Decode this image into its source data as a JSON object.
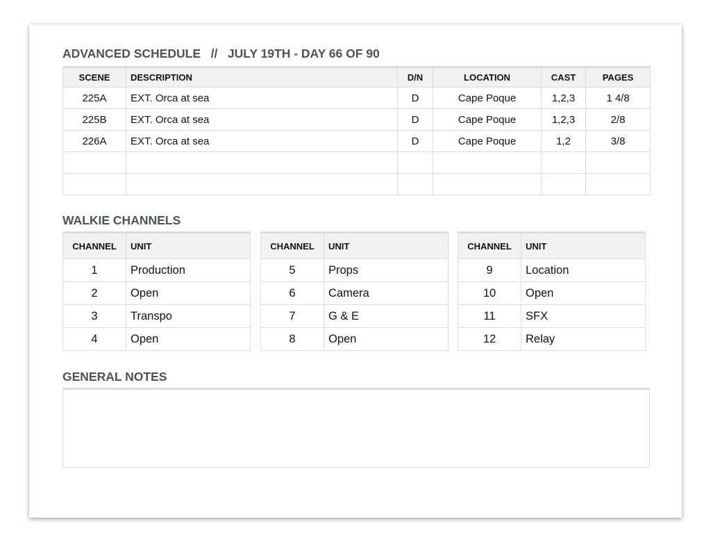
{
  "schedule": {
    "title": "ADVANCED SCHEDULE   //   JULY 19TH - DAY 66 OF 90",
    "headers": [
      "SCENE",
      "DESCRIPTION",
      "D/N",
      "LOCATION",
      "CAST",
      "PAGES"
    ],
    "rows": [
      [
        "225A",
        "EXT. Orca at sea",
        "D",
        "Cape Poque",
        "1,2,3",
        "1 4/8"
      ],
      [
        "225B",
        "EXT. Orca at sea",
        "D",
        "Cape Poque",
        "1,2,3",
        "2/8"
      ],
      [
        "226A",
        "EXT. Orca at sea",
        "D",
        "Cape Poque",
        "1,2",
        "3/8"
      ],
      [
        "",
        "",
        "",
        "",
        "",
        ""
      ],
      [
        "",
        "",
        "",
        "",
        "",
        ""
      ]
    ]
  },
  "walkie": {
    "title": "WALKIE CHANNELS",
    "headers": [
      "CHANNEL",
      "UNIT"
    ],
    "tables": [
      [
        [
          "1",
          "Production"
        ],
        [
          "2",
          "Open"
        ],
        [
          "3",
          "Transpo"
        ],
        [
          "4",
          "Open"
        ]
      ],
      [
        [
          "5",
          "Props"
        ],
        [
          "6",
          "Camera"
        ],
        [
          "7",
          "G & E"
        ],
        [
          "8",
          "Open"
        ]
      ],
      [
        [
          "9",
          "Location"
        ],
        [
          "10",
          "Open"
        ],
        [
          "11",
          "SFX"
        ],
        [
          "12",
          "Relay"
        ]
      ]
    ]
  },
  "notes": {
    "title": "GENERAL NOTES",
    "value": ""
  }
}
